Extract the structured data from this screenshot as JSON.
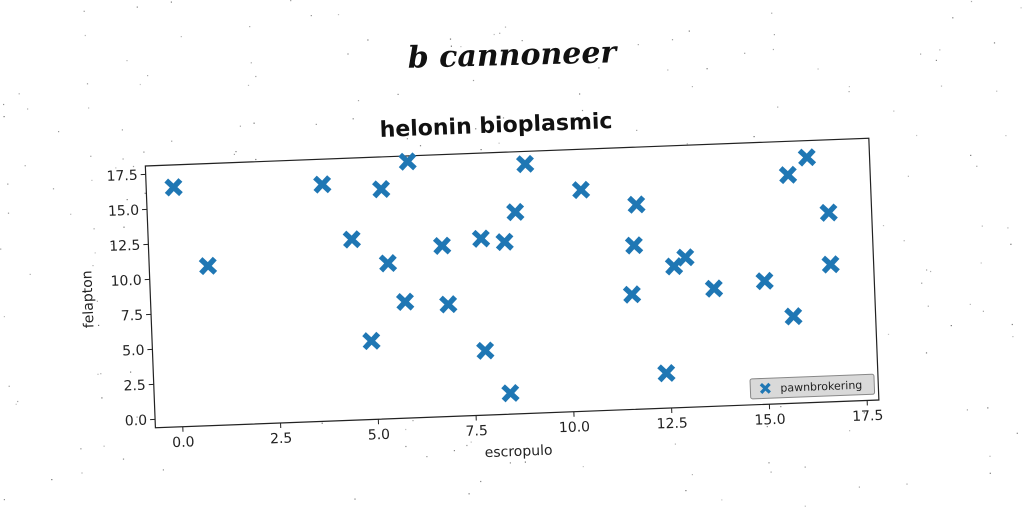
{
  "figure": {
    "suptitle": "b cannoneer"
  },
  "colors": {
    "marker": "#1f77b4",
    "axes": "#222222",
    "legend_bg": "#d9d9d9"
  },
  "chart_data": {
    "type": "scatter",
    "title": "helonin bioplasmic",
    "xlabel": "escropulo",
    "ylabel": "felapton",
    "xlim": [
      -0.7,
      17.8
    ],
    "ylim": [
      -0.6,
      18.1
    ],
    "xticks": [
      "0.0",
      "2.5",
      "5.0",
      "7.5",
      "10.0",
      "12.5",
      "15.0",
      "17.5"
    ],
    "yticks": [
      "0.0",
      "2.5",
      "5.0",
      "7.5",
      "10.0",
      "12.5",
      "15.0",
      "17.5"
    ],
    "grid": false,
    "legend_position": "lower right",
    "marker": "X",
    "series": [
      {
        "name": "pawnbrokering",
        "points": [
          [
            0.0,
            16.5
          ],
          [
            0.8,
            10.8
          ],
          [
            3.8,
            16.3
          ],
          [
            4.5,
            12.3
          ],
          [
            4.9,
            5.0
          ],
          [
            5.3,
            15.8
          ],
          [
            5.4,
            10.5
          ],
          [
            5.8,
            7.7
          ],
          [
            6.0,
            17.7
          ],
          [
            6.8,
            11.6
          ],
          [
            6.9,
            7.4
          ],
          [
            7.8,
            12.0
          ],
          [
            7.8,
            4.0
          ],
          [
            8.4,
            11.7
          ],
          [
            8.4,
            0.9
          ],
          [
            8.7,
            13.8
          ],
          [
            9.0,
            17.2
          ],
          [
            10.4,
            15.2
          ],
          [
            11.6,
            7.6
          ],
          [
            11.7,
            11.1
          ],
          [
            11.8,
            14.0
          ],
          [
            12.4,
            1.9
          ],
          [
            12.7,
            9.5
          ],
          [
            13.0,
            10.1
          ],
          [
            13.7,
            7.8
          ],
          [
            15.0,
            8.2
          ],
          [
            15.7,
            5.6
          ],
          [
            15.7,
            15.7
          ],
          [
            16.2,
            16.9
          ],
          [
            16.7,
            12.9
          ],
          [
            16.7,
            9.2
          ]
        ]
      }
    ]
  }
}
